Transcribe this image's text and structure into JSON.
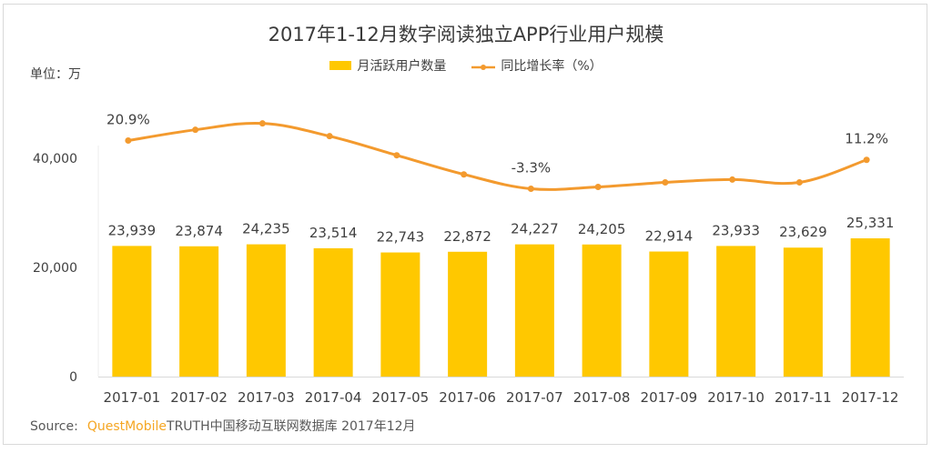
{
  "chart_data": {
    "type": "bar",
    "title": "2017年1-12月数字阅读独立APP行业用户规模",
    "unit_label": "单位：万",
    "categories": [
      "2017-01",
      "2017-02",
      "2017-03",
      "2017-04",
      "2017-05",
      "2017-06",
      "2017-07",
      "2017-08",
      "2017-09",
      "2017-10",
      "2017-11",
      "2017-12"
    ],
    "series": [
      {
        "name": "月活跃用户数量",
        "type": "bar",
        "color": "#FFC800",
        "values": [
          23939,
          23874,
          24235,
          23514,
          22743,
          22872,
          24227,
          24205,
          22914,
          23933,
          23629,
          25331
        ],
        "value_labels": [
          "23,939",
          "23,874",
          "24,235",
          "23,514",
          "22,743",
          "22,872",
          "24,227",
          "24,205",
          "22,914",
          "23,933",
          "23,629",
          "25,331"
        ]
      },
      {
        "name": "同比增长率（%）",
        "type": "line",
        "color": "#F39A2E",
        "values": [
          20.9,
          26.3,
          29.5,
          23.1,
          13.5,
          3.9,
          -3.3,
          -2.4,
          -0.1,
          1.3,
          -0.1,
          11.2
        ],
        "value_labels": [
          "20.9%",
          "",
          "",
          "",
          "",
          "",
          "-3.3%",
          "",
          "",
          "",
          "",
          "11.2%"
        ],
        "axis": "secondary-hidden",
        "note": "only 20.9%, -3.3% and 11.2% are printed; other values estimated"
      }
    ],
    "y_axis": {
      "ticks": [
        0,
        20000,
        40000
      ],
      "tick_labels": [
        "0",
        "20,000",
        "40,000"
      ],
      "ylim": [
        0,
        60000
      ]
    },
    "y2_axis": {
      "visible": false
    },
    "legend": {
      "placement": "top-center",
      "entries": [
        "月活跃用户数量",
        "同比增长率（%）"
      ]
    },
    "grid": false,
    "xlabel": "",
    "ylabel": ""
  },
  "source": {
    "prefix": "Source:",
    "brand": "QuestMobile",
    "text": "TRUTH中国移动互联网数据库 2017年12月"
  }
}
